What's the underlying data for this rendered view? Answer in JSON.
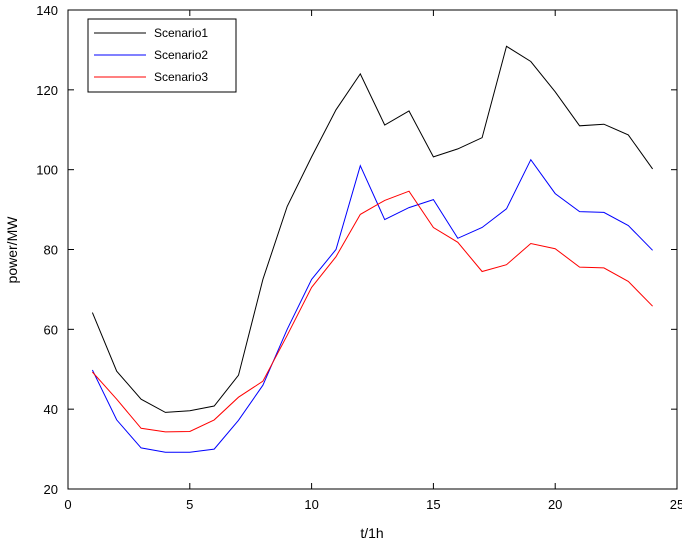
{
  "chart_data": {
    "type": "line",
    "title": "",
    "xlabel": "t/1h",
    "ylabel": "power/MW",
    "xlim": [
      0,
      25
    ],
    "ylim": [
      20,
      140
    ],
    "xticks": [
      0,
      5,
      10,
      15,
      20,
      25
    ],
    "yticks": [
      20,
      40,
      60,
      80,
      100,
      120,
      140
    ],
    "grid": false,
    "legend_position": "top-left",
    "x": [
      1,
      2,
      3,
      4,
      5,
      6,
      7,
      8,
      9,
      10,
      11,
      12,
      13,
      14,
      15,
      16,
      17,
      18,
      19,
      20,
      21,
      22,
      23,
      24
    ],
    "series": [
      {
        "name": "Scenario1",
        "color": "#000000",
        "values": [
          64.2,
          49.5,
          42.5,
          39.2,
          39.6,
          40.8,
          48.5,
          72.5,
          90.8,
          103.2,
          115.0,
          124.0,
          111.2,
          114.7,
          103.2,
          105.2,
          108.0,
          130.9,
          127.1,
          119.5,
          111.0,
          111.4,
          108.7,
          100.2
        ]
      },
      {
        "name": "Scenario2",
        "color": "#0000ff",
        "values": [
          49.8,
          37.3,
          30.3,
          29.2,
          29.2,
          30.0,
          37.2,
          46.0,
          60.0,
          72.5,
          80.0,
          101.0,
          87.5,
          90.5,
          92.5,
          82.8,
          85.5,
          90.2,
          102.5,
          94.0,
          89.5,
          89.3,
          86.0,
          79.8
        ]
      },
      {
        "name": "Scenario3",
        "color": "#ff0000",
        "values": [
          49.3,
          42.5,
          35.2,
          34.3,
          34.4,
          37.3,
          43.0,
          47.0,
          58.5,
          70.5,
          78.2,
          88.8,
          92.3,
          94.6,
          85.5,
          81.8,
          74.5,
          76.2,
          81.5,
          80.2,
          75.6,
          75.4,
          72.0,
          65.8
        ]
      }
    ]
  }
}
